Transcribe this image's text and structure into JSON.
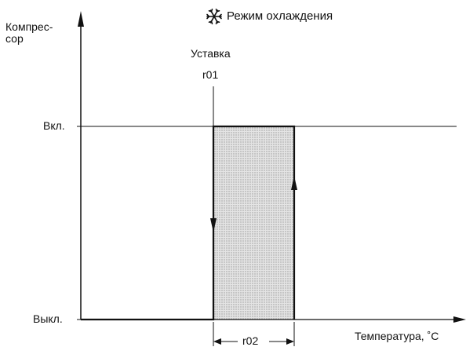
{
  "diagram": {
    "title": "Режим охлаждения",
    "title_icon": "snowflake-icon",
    "y_axis_label_line1": "Компрес-",
    "y_axis_label_line2": "сор",
    "x_axis_label": "Температура, ˚C",
    "level_on_label": "Вкл.",
    "level_off_label": "Выкл.",
    "setpoint_label": "Уставка",
    "setpoint_param": "r01",
    "differential_param": "r02"
  },
  "colors": {
    "line": "#111111",
    "hatch_fill": "#e2e2e2",
    "hatch_dot": "#9a9a9a"
  }
}
